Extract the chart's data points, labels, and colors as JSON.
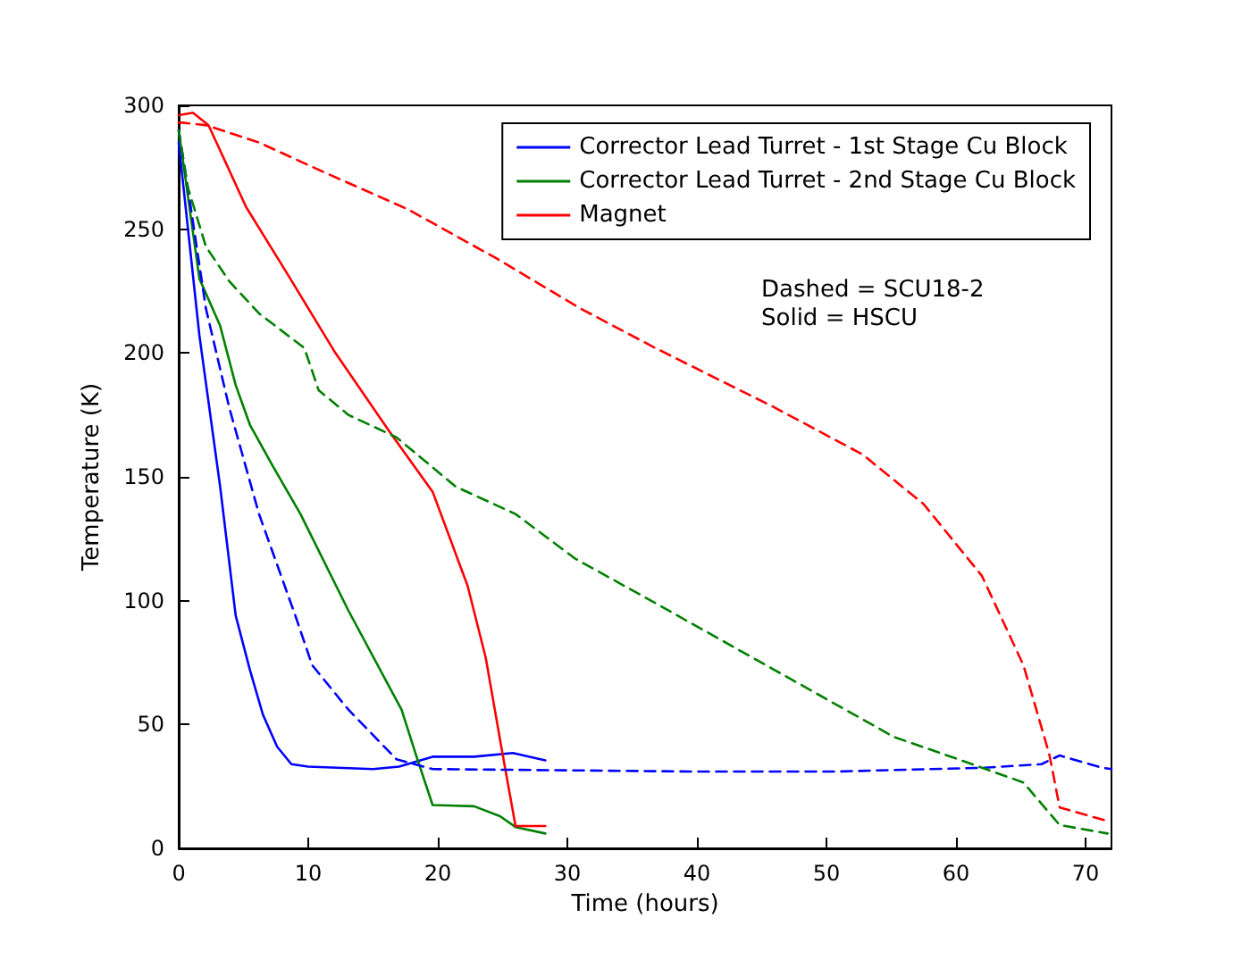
{
  "chart_data": {
    "type": "line",
    "xlabel": "Time (hours)",
    "ylabel": "Temperature (K)",
    "xlim": [
      0,
      72
    ],
    "xticks": [
      0,
      10,
      20,
      30,
      40,
      50,
      60,
      70
    ],
    "ylim": [
      0,
      300
    ],
    "yticks": [
      0,
      50,
      100,
      150,
      200,
      250,
      300
    ],
    "grid": false,
    "legend": "top right",
    "marker": "none",
    "annotations": [
      "Dashed = SCU18-2",
      "Solid = HSCU"
    ],
    "series": [
      {
        "name": "Corrector Lead Turret - 1st Stage Cu Block",
        "color": "#0000ff",
        "line_style": "solid",
        "x": [
          0,
          1.6,
          3.2,
          4.4,
          5.5,
          6.5,
          7.6,
          8.7,
          10,
          15,
          17,
          19.6,
          22.8,
          25.8,
          28.3
        ],
        "values": [
          285,
          207,
          146,
          94,
          72,
          54,
          41,
          34,
          33,
          32,
          33,
          37,
          37,
          38.5,
          35.5
        ]
      },
      {
        "name": "Corrector Lead Turret - 2nd Stage Cu Block",
        "color": "#008000",
        "line_style": "solid",
        "x": [
          0,
          1.6,
          3.2,
          4.4,
          5.5,
          7.3,
          9.4,
          13.1,
          17.2,
          18.3,
          19.6,
          22.8,
          24.8,
          26,
          28.3
        ],
        "values": [
          290,
          230,
          211,
          187,
          171,
          154,
          135,
          96,
          56,
          38,
          17.5,
          17,
          13,
          8.6,
          6
        ]
      },
      {
        "name": "Magnet",
        "color": "#ff0000",
        "line_style": "solid",
        "x": [
          0,
          1.1,
          2.3,
          5.2,
          8.5,
          12.1,
          16.3,
          19.6,
          22.3,
          23.7,
          24.9,
          26,
          28.3
        ],
        "values": [
          296,
          297,
          292,
          259,
          231,
          200,
          168,
          144,
          106,
          77,
          41,
          9,
          9
        ]
      },
      {
        "color": "#0000ff",
        "line_style": "dashed",
        "x": [
          0,
          0.7,
          2.1,
          3.9,
          6.2,
          9,
          10.3,
          13.1,
          16.8,
          19.6,
          30,
          40,
          50.6,
          62,
          66.6,
          68,
          71.3,
          72
        ],
        "values": [
          290,
          267,
          218,
          178,
          135,
          94,
          74,
          56,
          36,
          32,
          31.5,
          31,
          31,
          32.5,
          34,
          37.5,
          32.5,
          32
        ]
      },
      {
        "color": "#008000",
        "line_style": "dashed",
        "x": [
          0,
          0.7,
          2.1,
          3.9,
          6.2,
          9.7,
          10.8,
          13.1,
          16.8,
          21.4,
          26,
          30.6,
          36.8,
          46,
          55.2,
          60.7,
          65.2,
          68,
          71.7
        ],
        "values": [
          290,
          267,
          243,
          229,
          216,
          202,
          185,
          175,
          166,
          146,
          135,
          117,
          99,
          72,
          45,
          35,
          26.6,
          9.4,
          6
        ]
      },
      {
        "color": "#ff0000",
        "line_style": "dashed",
        "x": [
          0,
          0.3,
          2.1,
          6.2,
          10.8,
          17.7,
          24.6,
          31,
          36.8,
          46,
          52.8,
          57.5,
          62,
          65.2,
          67.2,
          68,
          71.7
        ],
        "values": [
          293,
          293,
          292,
          285,
          274,
          258,
          238,
          218,
          202,
          178,
          159,
          139,
          110,
          74,
          38,
          16.5,
          11
        ]
      }
    ]
  }
}
